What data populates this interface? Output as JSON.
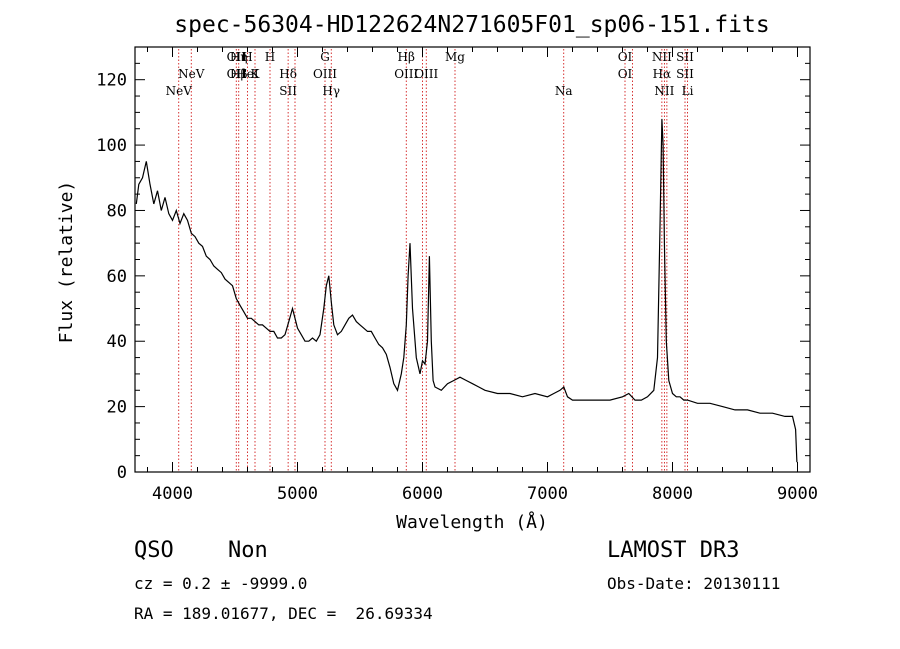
{
  "chart_data": {
    "type": "line",
    "title": "spec-56304-HD122624N271605F01_sp06-151.fits",
    "xlabel": "Wavelength (Å)",
    "ylabel": "Flux (relative)",
    "xlim": [
      3700,
      9100
    ],
    "ylim": [
      0,
      130
    ],
    "xticks": [
      4000,
      5000,
      6000,
      7000,
      8000,
      9000
    ],
    "yticks": [
      0,
      20,
      40,
      60,
      80,
      100,
      120
    ],
    "grid": false,
    "line_color": "#000000",
    "marker_color": "#cc0000",
    "series": [
      {
        "x": [
          3710,
          3730,
          3760,
          3790,
          3820,
          3850,
          3880,
          3910,
          3940,
          3970,
          4000,
          4030,
          4060,
          4090,
          4120,
          4150,
          4180,
          4210,
          4240,
          4270,
          4300,
          4330,
          4360,
          4390,
          4420,
          4450,
          4480,
          4510,
          4540,
          4570,
          4600,
          4630,
          4660,
          4690,
          4720,
          4750,
          4780,
          4810,
          4840,
          4870,
          4900,
          4930,
          4960,
          4980,
          5000,
          5030,
          5060,
          5090,
          5120,
          5150,
          5180,
          5210,
          5230,
          5250,
          5270,
          5290,
          5320,
          5350,
          5380,
          5410,
          5440,
          5470,
          5500,
          5530,
          5560,
          5590,
          5620,
          5650,
          5680,
          5710,
          5740,
          5770,
          5800,
          5830,
          5850,
          5870,
          5885,
          5900,
          5920,
          5950,
          5980,
          6000,
          6020,
          6040,
          6055,
          6070,
          6085,
          6100,
          6150,
          6200,
          6250,
          6300,
          6350,
          6400,
          6450,
          6500,
          6600,
          6700,
          6800,
          6900,
          7000,
          7050,
          7100,
          7130,
          7160,
          7200,
          7300,
          7400,
          7500,
          7600,
          7650,
          7700,
          7750,
          7800,
          7850,
          7880,
          7900,
          7915,
          7925,
          7935,
          7950,
          7970,
          8000,
          8030,
          8060,
          8090,
          8120,
          8200,
          8300,
          8400,
          8500,
          8600,
          8700,
          8800,
          8900,
          8960,
          8985,
          8995
        ],
        "y": [
          82,
          88,
          90,
          95,
          88,
          82,
          86,
          80,
          84,
          79,
          77,
          80,
          76,
          79,
          77,
          73,
          72,
          70,
          69,
          66,
          65,
          63,
          62,
          61,
          59,
          58,
          57,
          53,
          51,
          49,
          47,
          47,
          46,
          45,
          45,
          44,
          43,
          43,
          41,
          41,
          42,
          46,
          50,
          47,
          44,
          42,
          40,
          40,
          41,
          40,
          42,
          50,
          57,
          60,
          52,
          45,
          42,
          43,
          45,
          47,
          48,
          46,
          45,
          44,
          43,
          43,
          41,
          39,
          38,
          36,
          32,
          27,
          25,
          30,
          35,
          45,
          60,
          70,
          50,
          35,
          30,
          34,
          33,
          40,
          66,
          40,
          28,
          26,
          25,
          27,
          28,
          29,
          28,
          27,
          26,
          25,
          24,
          24,
          23,
          24,
          23,
          24,
          25,
          26,
          23,
          22,
          22,
          22,
          22,
          23,
          24,
          22,
          22,
          23,
          25,
          35,
          75,
          108,
          100,
          70,
          40,
          28,
          24,
          23,
          23,
          22,
          22,
          21,
          21,
          20,
          19,
          19,
          18,
          18,
          17,
          17,
          13,
          3
        ]
      }
    ],
    "lines": [
      {
        "label": "NeV",
        "label2": "",
        "x": 4050,
        "tier": 3
      },
      {
        "label": "NeV",
        "label2": "",
        "x": 4150,
        "tier": 2
      },
      {
        "label": "OII",
        "label2": "OII",
        "x": 4510,
        "tier": 1
      },
      {
        "label": "Hη",
        "label2": "Hβ",
        "x": 4530,
        "tier": 1
      },
      {
        "label": "H",
        "label2": "HeI",
        "x": 4600,
        "tier": 1
      },
      {
        "label": "K",
        "label2": "",
        "x": 4660,
        "tier": 2
      },
      {
        "label": "H",
        "label2": "",
        "x": 4780,
        "tier": 1
      },
      {
        "label": "Hδ",
        "label2": "SII",
        "x": 4925,
        "tier": 2
      },
      {
        "label": "",
        "label2": "",
        "x": 4980,
        "tier": 0
      },
      {
        "label": "G",
        "label2": "OIII",
        "x": 5220,
        "tier": 1
      },
      {
        "label": "Hγ",
        "label2": "",
        "x": 5270,
        "tier": 3
      },
      {
        "label": "Hβ",
        "label2": "OIII",
        "x": 5870,
        "tier": 1
      },
      {
        "label": "",
        "label2": "",
        "x": 6000,
        "tier": 0
      },
      {
        "label": "OIII",
        "label2": "",
        "x": 6030,
        "tier": 2
      },
      {
        "label": "Mg",
        "label2": "",
        "x": 6260,
        "tier": 1
      },
      {
        "label": "Na",
        "label2": "",
        "x": 7130,
        "tier": 3
      },
      {
        "label": "OI",
        "label2": "OI",
        "x": 7620,
        "tier": 1
      },
      {
        "label": "",
        "label2": "",
        "x": 7680,
        "tier": 0
      },
      {
        "label": "NII",
        "label2": "Hα",
        "x": 7915,
        "tier": 1
      },
      {
        "label": "",
        "label2": "NII",
        "x": 7935,
        "tier": 0
      },
      {
        "label": "",
        "label2": "",
        "x": 7955,
        "tier": 0
      },
      {
        "label": "SII",
        "label2": "SII",
        "x": 8100,
        "tier": 1
      },
      {
        "label": "Li",
        "label2": "",
        "x": 8120,
        "tier": 3
      }
    ]
  },
  "footer": {
    "object_class": "QSO",
    "subclass": "Non",
    "cz_text": "cz = 0.2 ± -9999.0",
    "coords_text": "RA = 189.01677, DEC =  26.69334",
    "survey": "LAMOST DR3",
    "obs_date": "Obs-Date: 20130111"
  }
}
